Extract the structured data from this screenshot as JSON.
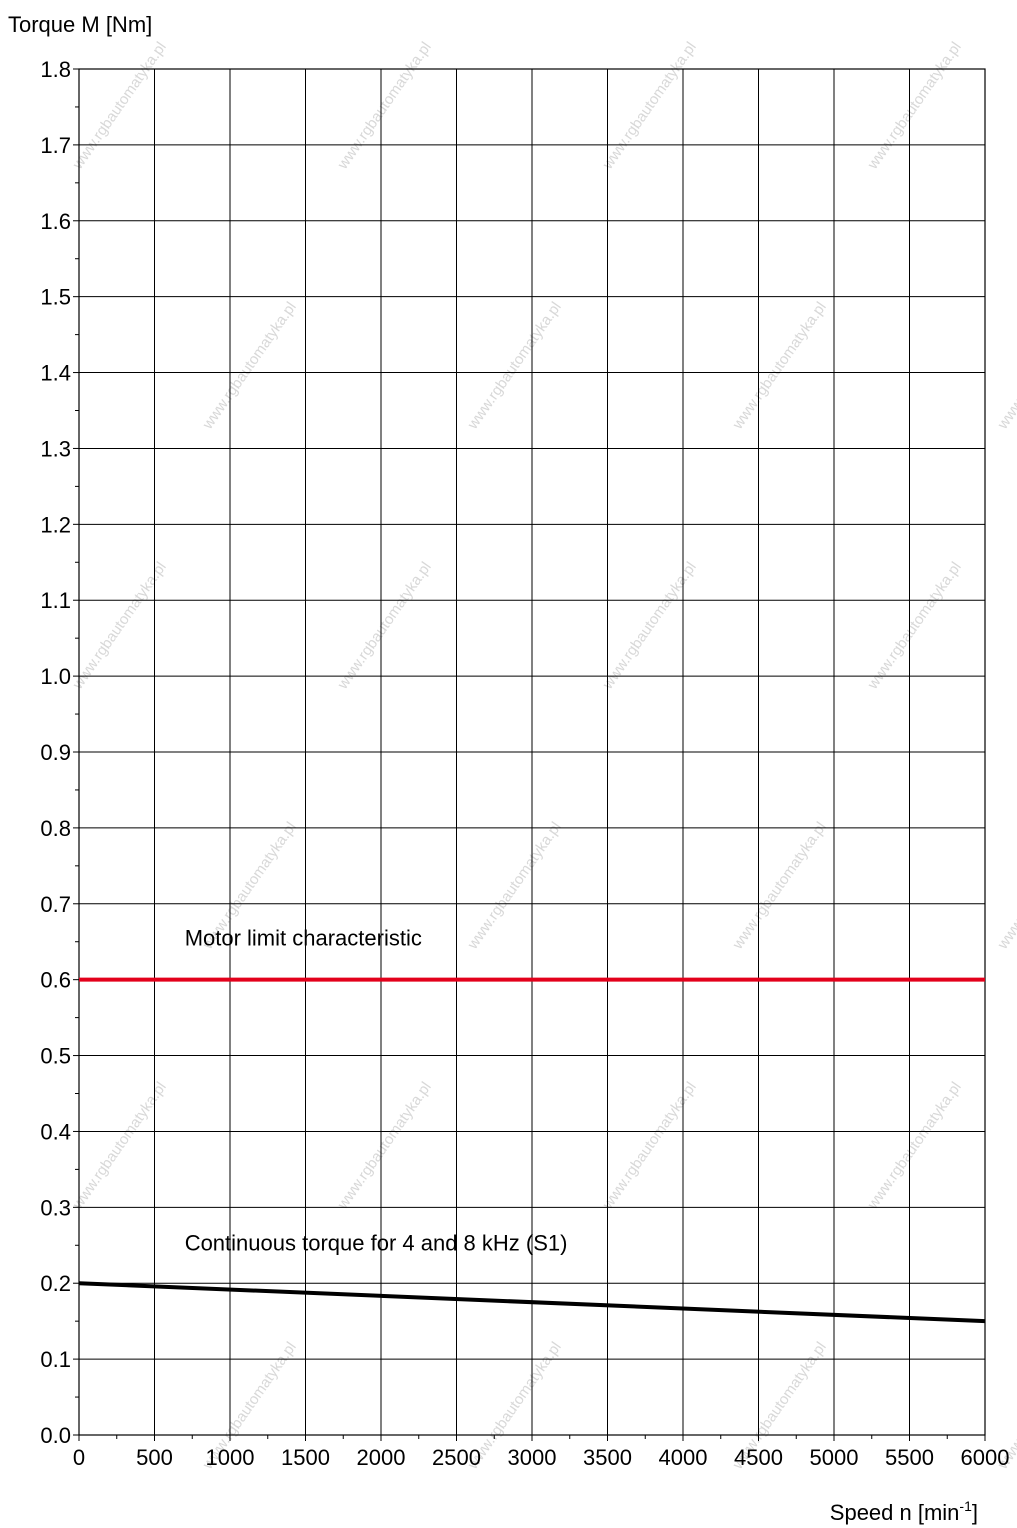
{
  "watermark": "www.rgbautomatyka.pl",
  "chart_data": {
    "type": "line",
    "ylabel": "Torque M [Nm]",
    "xlabel_main": "Speed n [min",
    "xlabel_sup": "-1",
    "xlabel_end": "]",
    "xlim": [
      0,
      6000
    ],
    "ylim": [
      0.0,
      1.8
    ],
    "grid": true,
    "x_ticks": [
      "0",
      "500",
      "1000",
      "1500",
      "2000",
      "2500",
      "3000",
      "3500",
      "4000",
      "4500",
      "5000",
      "5500",
      "6000"
    ],
    "y_ticks": [
      "0.0",
      "0.1",
      "0.2",
      "0.3",
      "0.4",
      "0.5",
      "0.6",
      "0.7",
      "0.8",
      "0.9",
      "1.0",
      "1.1",
      "1.2",
      "1.3",
      "1.4",
      "1.5",
      "1.6",
      "1.7",
      "1.8"
    ],
    "series": [
      {
        "name": "Motor limit characteristic",
        "color": "#e3001b",
        "x": [
          0,
          6000
        ],
        "y": [
          0.6,
          0.6
        ],
        "label_at": [
          700,
          0.645
        ]
      },
      {
        "name": "Continuous torque for 4 and 8 kHz (S1)",
        "color": "#000000",
        "x": [
          0,
          6000
        ],
        "y": [
          0.2,
          0.15
        ],
        "label_at": [
          700,
          0.243
        ]
      }
    ]
  }
}
